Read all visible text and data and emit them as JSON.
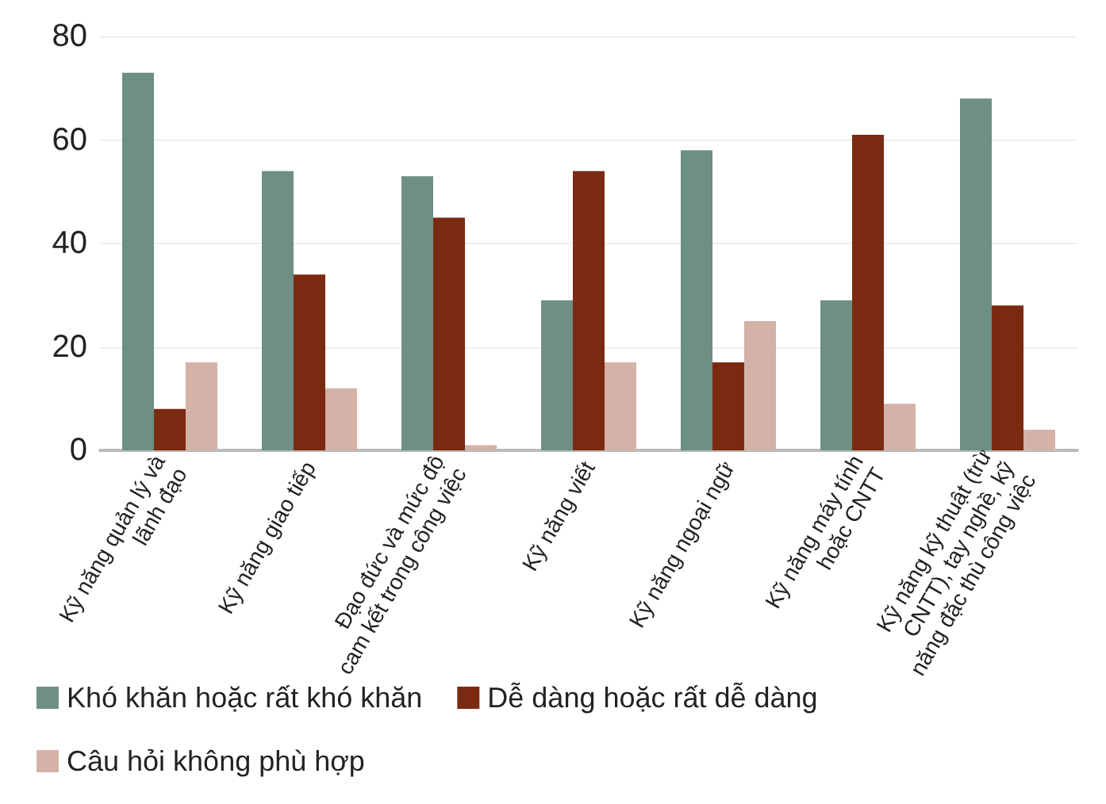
{
  "chart_data": {
    "type": "bar",
    "categories": [
      "Kỹ năng quản lý và\nlãnh đạo",
      "Kỹ năng giao tiếp",
      "Đạo đức và mức độ\ncam kết trong công việc",
      "Kỹ năng viết",
      "Kỹ năng ngoại ngữ",
      "Kỹ năng máy tính\nhoặc CNTT",
      "Kỹ năng kỹ thuật (trừ\nCNTT), tay nghề, kỹ\nnăng đặc thù công việc"
    ],
    "series": [
      {
        "name": "Khó khăn hoặc rất khó khăn",
        "color": "#6e8f83",
        "values": [
          73,
          54,
          53,
          29,
          58,
          29,
          68
        ]
      },
      {
        "name": "Dễ dàng hoặc rất dễ dàng",
        "color": "#7b2a12",
        "values": [
          8,
          34,
          45,
          54,
          17,
          61,
          28
        ]
      },
      {
        "name": "Câu hỏi không phù hợp",
        "color": "#d4b2a8",
        "values": [
          17,
          12,
          1,
          17,
          25,
          9,
          4
        ]
      }
    ],
    "ylim": [
      0,
      80
    ],
    "yticks": [
      0,
      20,
      40,
      60,
      80
    ],
    "grid": "y",
    "legend": "bottom"
  }
}
